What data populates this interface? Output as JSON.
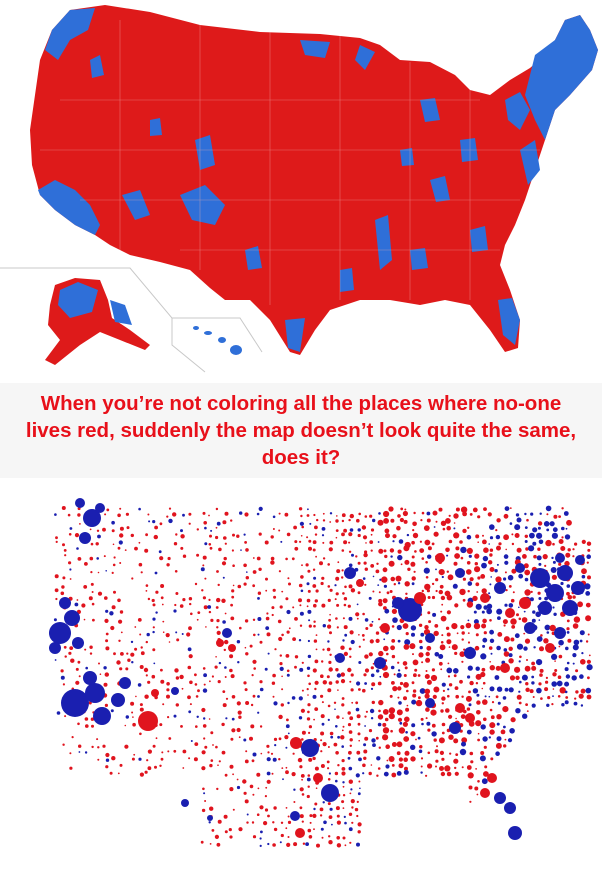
{
  "caption": {
    "text": "When you’re not coloring all the places where no-one lives red, suddenly the map doesn’t look quite the same, does it?",
    "color": "#e8101a"
  },
  "colors": {
    "red": "#de1a1a",
    "blue": "#2f6fd8",
    "dot_red": "#e0141e",
    "dot_blue": "#1a1fb0",
    "border": "#f2b0b0"
  }
}
